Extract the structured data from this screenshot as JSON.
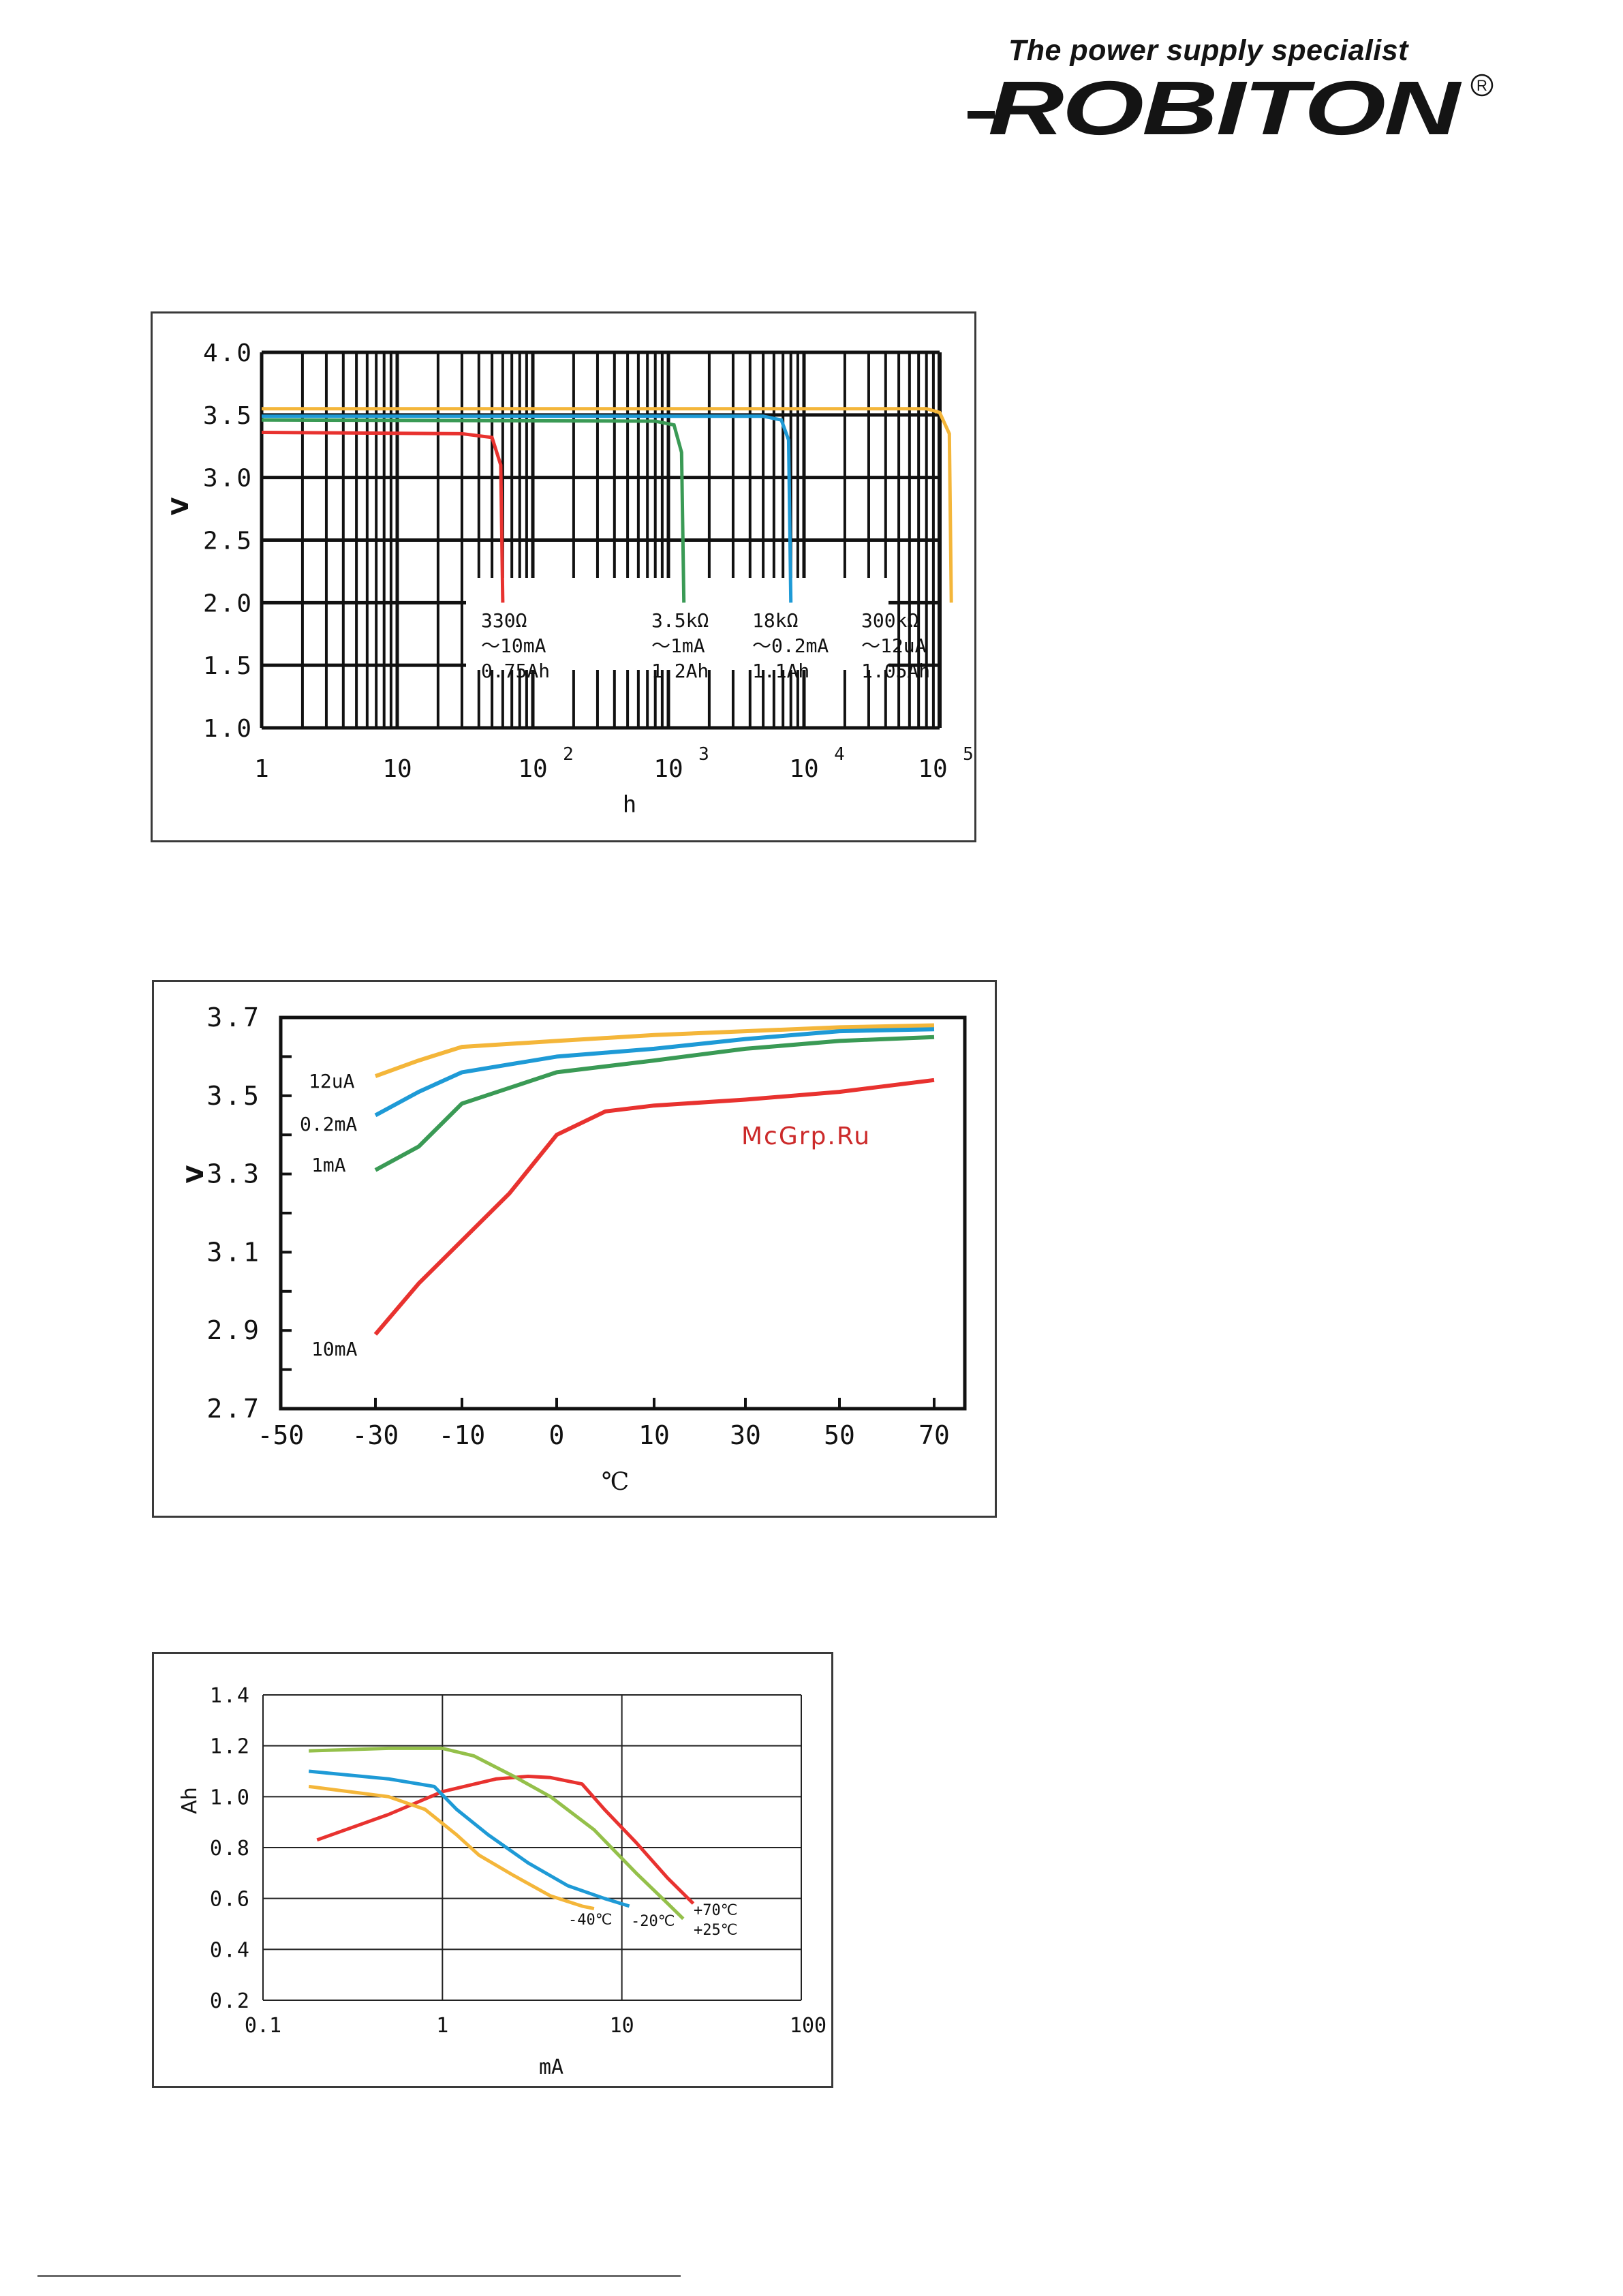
{
  "header": {
    "tagline": "The power supply specialist",
    "logo_text": "ROBITON",
    "registered_mark": "R"
  },
  "watermark": "McGrp.Ru",
  "colors": {
    "red": "#e8322f",
    "green": "#3a9a55",
    "blue": "#1e9ad6",
    "yellow": "#f4b63a",
    "lightgreen": "#94c04a",
    "frame": "#1a1a1a"
  },
  "chart_data": [
    {
      "type": "line",
      "ylabel": "V",
      "xlabel": "h",
      "xscale": "log",
      "xlim": [
        1,
        100000
      ],
      "ylim": [
        1.0,
        4.0
      ],
      "grid": true,
      "x_tick_labels": [
        {
          "x": 1,
          "base": "1",
          "exp": ""
        },
        {
          "x": 10,
          "base": "10",
          "exp": ""
        },
        {
          "x": 100,
          "base": "10",
          "exp": "2"
        },
        {
          "x": 1000,
          "base": "10",
          "exp": "3"
        },
        {
          "x": 10000,
          "base": "10",
          "exp": "4"
        },
        {
          "x": 100000,
          "base": "10",
          "exp": "5"
        }
      ],
      "y_tick_labels": [
        "1.0",
        "1.5",
        "2.0",
        "2.5",
        "3.0",
        "3.5",
        "4.0"
      ],
      "series": [
        {
          "color": "red",
          "label": [
            "330Ω",
            "～10mA",
            "0.75Ah"
          ],
          "points": [
            [
              1,
              3.36
            ],
            [
              30,
              3.35
            ],
            [
              50,
              3.32
            ],
            [
              58,
              3.1
            ],
            [
              60,
              2.0
            ]
          ]
        },
        {
          "color": "green",
          "label": [
            "3.5kΩ",
            "～1mA",
            "1.2Ah"
          ],
          "points": [
            [
              1,
              3.46
            ],
            [
              800,
              3.45
            ],
            [
              1100,
              3.42
            ],
            [
              1250,
              3.2
            ],
            [
              1300,
              2.0
            ]
          ]
        },
        {
          "color": "blue",
          "label": [
            "18kΩ",
            "～0.2mA",
            "1.1Ah"
          ],
          "points": [
            [
              1,
              3.49
            ],
            [
              5000,
              3.49
            ],
            [
              6800,
              3.46
            ],
            [
              7700,
              3.3
            ],
            [
              8000,
              2.0
            ]
          ]
        },
        {
          "color": "yellow",
          "label": [
            "300kΩ",
            "～12uA",
            "1.05Ah"
          ],
          "points": [
            [
              1,
              3.55
            ],
            [
              80000,
              3.55
            ],
            [
              100000,
              3.52
            ],
            [
              118000,
              3.35
            ],
            [
              122000,
              2.0
            ]
          ]
        }
      ]
    },
    {
      "type": "line",
      "ylabel": "V",
      "xlabel": "℃",
      "x_tick_labels": [
        "-50",
        "-30",
        "-10",
        "0",
        "10",
        "30",
        "50",
        "70"
      ],
      "xlim_ticks": [
        -50,
        -30,
        -10,
        0,
        10,
        30,
        50,
        70
      ],
      "ylim": [
        2.7,
        3.7
      ],
      "y_tick_labels": [
        "2.7",
        "2.9",
        "3.1",
        "3.3",
        "3.5",
        "3.7"
      ],
      "grid": false,
      "series": [
        {
          "color": "yellow",
          "name": "12uA",
          "points": [
            [
              -30,
              3.55
            ],
            [
              -20,
              3.59
            ],
            [
              -10,
              3.625
            ],
            [
              0,
              3.64
            ],
            [
              10,
              3.655
            ],
            [
              30,
              3.665
            ],
            [
              50,
              3.675
            ],
            [
              70,
              3.68
            ]
          ]
        },
        {
          "color": "blue",
          "name": "0.2mA",
          "points": [
            [
              -30,
              3.45
            ],
            [
              -20,
              3.51
            ],
            [
              -10,
              3.56
            ],
            [
              0,
              3.6
            ],
            [
              10,
              3.62
            ],
            [
              30,
              3.645
            ],
            [
              50,
              3.665
            ],
            [
              70,
              3.67
            ]
          ]
        },
        {
          "color": "green",
          "name": "1mA",
          "points": [
            [
              -30,
              3.31
            ],
            [
              -20,
              3.37
            ],
            [
              -10,
              3.48
            ],
            [
              0,
              3.56
            ],
            [
              10,
              3.59
            ],
            [
              30,
              3.62
            ],
            [
              50,
              3.64
            ],
            [
              70,
              3.65
            ]
          ]
        },
        {
          "color": "red",
          "name": "10mA",
          "points": [
            [
              -30,
              2.89
            ],
            [
              -20,
              3.02
            ],
            [
              -10,
              3.13
            ],
            [
              -5,
              3.25
            ],
            [
              0,
              3.4
            ],
            [
              5,
              3.46
            ],
            [
              10,
              3.475
            ],
            [
              30,
              3.49
            ],
            [
              50,
              3.51
            ],
            [
              70,
              3.54
            ]
          ]
        }
      ]
    },
    {
      "type": "line",
      "ylabel": "Ah",
      "xlabel": "mA",
      "xscale": "log",
      "xlim": [
        0.1,
        100
      ],
      "ylim": [
        0.2,
        1.4
      ],
      "grid": true,
      "x_tick_labels": [
        "0.1",
        "1",
        "10",
        "100"
      ],
      "y_tick_labels": [
        "0.2",
        "0.4",
        "0.6",
        "0.8",
        "1.0",
        "1.2",
        "1.4"
      ],
      "series": [
        {
          "color": "red",
          "name": "+70℃",
          "points": [
            [
              0.2,
              0.83
            ],
            [
              0.5,
              0.93
            ],
            [
              1,
              1.02
            ],
            [
              2,
              1.07
            ],
            [
              3,
              1.08
            ],
            [
              4,
              1.075
            ],
            [
              6,
              1.05
            ],
            [
              8,
              0.95
            ],
            [
              12,
              0.82
            ],
            [
              18,
              0.68
            ],
            [
              25,
              0.58
            ]
          ]
        },
        {
          "color": "lightgreen",
          "name": "+25℃",
          "points": [
            [
              0.18,
              1.18
            ],
            [
              0.5,
              1.19
            ],
            [
              1,
              1.19
            ],
            [
              1.5,
              1.16
            ],
            [
              2.5,
              1.08
            ],
            [
              4,
              1.0
            ],
            [
              7,
              0.87
            ],
            [
              12,
              0.7
            ],
            [
              18,
              0.58
            ],
            [
              22,
              0.52
            ]
          ]
        },
        {
          "color": "blue",
          "name": "-20℃",
          "points": [
            [
              0.18,
              1.1
            ],
            [
              0.5,
              1.07
            ],
            [
              0.9,
              1.04
            ],
            [
              1.2,
              0.95
            ],
            [
              1.8,
              0.85
            ],
            [
              3,
              0.74
            ],
            [
              5,
              0.65
            ],
            [
              8,
              0.6
            ],
            [
              11,
              0.57
            ]
          ]
        },
        {
          "color": "yellow",
          "name": "-40℃",
          "points": [
            [
              0.18,
              1.04
            ],
            [
              0.5,
              1.0
            ],
            [
              0.8,
              0.95
            ],
            [
              1.2,
              0.85
            ],
            [
              1.6,
              0.77
            ],
            [
              2.5,
              0.69
            ],
            [
              4,
              0.61
            ],
            [
              6,
              0.57
            ],
            [
              7,
              0.56
            ]
          ]
        }
      ]
    }
  ]
}
